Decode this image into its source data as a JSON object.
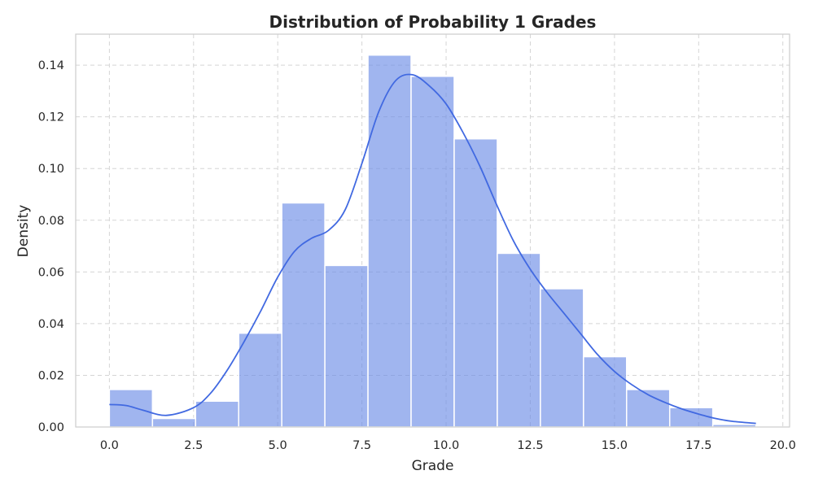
{
  "chart_data": {
    "type": "bar",
    "title": "Distribution of Probability 1 Grades",
    "xlabel": "Grade",
    "ylabel": "Density",
    "xlim": [
      -1,
      20.2
    ],
    "ylim": [
      0,
      0.152
    ],
    "x_ticks": [
      0.0,
      2.5,
      5.0,
      7.5,
      10.0,
      12.5,
      15.0,
      17.5,
      20.0
    ],
    "x_tick_labels": [
      "0.0",
      "2.5",
      "5.0",
      "7.5",
      "10.0",
      "12.5",
      "15.0",
      "17.5",
      "20.0"
    ],
    "y_ticks": [
      0.0,
      0.02,
      0.04,
      0.06,
      0.08,
      0.1,
      0.12,
      0.14
    ],
    "y_tick_labels": [
      "0.00",
      "0.02",
      "0.04",
      "0.06",
      "0.08",
      "0.10",
      "0.12",
      "0.14"
    ],
    "grid": true,
    "bins": [
      {
        "x0": 0.0,
        "x1": 1.28,
        "density": 0.0145
      },
      {
        "x0": 1.28,
        "x1": 2.56,
        "density": 0.0033
      },
      {
        "x0": 2.56,
        "x1": 3.84,
        "density": 0.01
      },
      {
        "x0": 3.84,
        "x1": 5.12,
        "density": 0.0363
      },
      {
        "x0": 5.12,
        "x1": 6.4,
        "density": 0.0867
      },
      {
        "x0": 6.4,
        "x1": 7.68,
        "density": 0.0625
      },
      {
        "x0": 7.68,
        "x1": 8.96,
        "density": 0.1439
      },
      {
        "x0": 8.96,
        "x1": 10.24,
        "density": 0.1357
      },
      {
        "x0": 10.24,
        "x1": 11.52,
        "density": 0.1115
      },
      {
        "x0": 11.52,
        "x1": 12.8,
        "density": 0.0672
      },
      {
        "x0": 12.8,
        "x1": 14.08,
        "density": 0.0535
      },
      {
        "x0": 14.08,
        "x1": 15.36,
        "density": 0.0272
      },
      {
        "x0": 15.36,
        "x1": 16.64,
        "density": 0.0145
      },
      {
        "x0": 16.64,
        "x1": 17.92,
        "density": 0.0075
      },
      {
        "x0": 17.92,
        "x1": 19.2,
        "density": 0.001
      }
    ],
    "kde": {
      "x": [
        0.0,
        0.5,
        1.0,
        1.7,
        2.5,
        3.0,
        3.5,
        4.0,
        4.5,
        5.0,
        5.5,
        6.0,
        6.5,
        7.0,
        7.5,
        8.0,
        8.5,
        9.0,
        9.5,
        10.0,
        10.5,
        11.0,
        11.5,
        12.0,
        12.5,
        13.0,
        13.5,
        14.0,
        14.5,
        15.0,
        15.5,
        16.0,
        16.5,
        17.0,
        17.5,
        18.0,
        18.5,
        19.2
      ],
      "y": [
        0.0087,
        0.0083,
        0.0065,
        0.0045,
        0.0075,
        0.013,
        0.022,
        0.033,
        0.045,
        0.058,
        0.068,
        0.073,
        0.076,
        0.084,
        0.102,
        0.122,
        0.134,
        0.1363,
        0.132,
        0.125,
        0.114,
        0.101,
        0.086,
        0.072,
        0.061,
        0.052,
        0.044,
        0.036,
        0.028,
        0.0215,
        0.0165,
        0.0125,
        0.0095,
        0.007,
        0.005,
        0.0033,
        0.0022,
        0.0014
      ]
    },
    "bar_color": "#6a8ce6",
    "bar_opacity": 0.64,
    "line_color": "#4169e1"
  }
}
